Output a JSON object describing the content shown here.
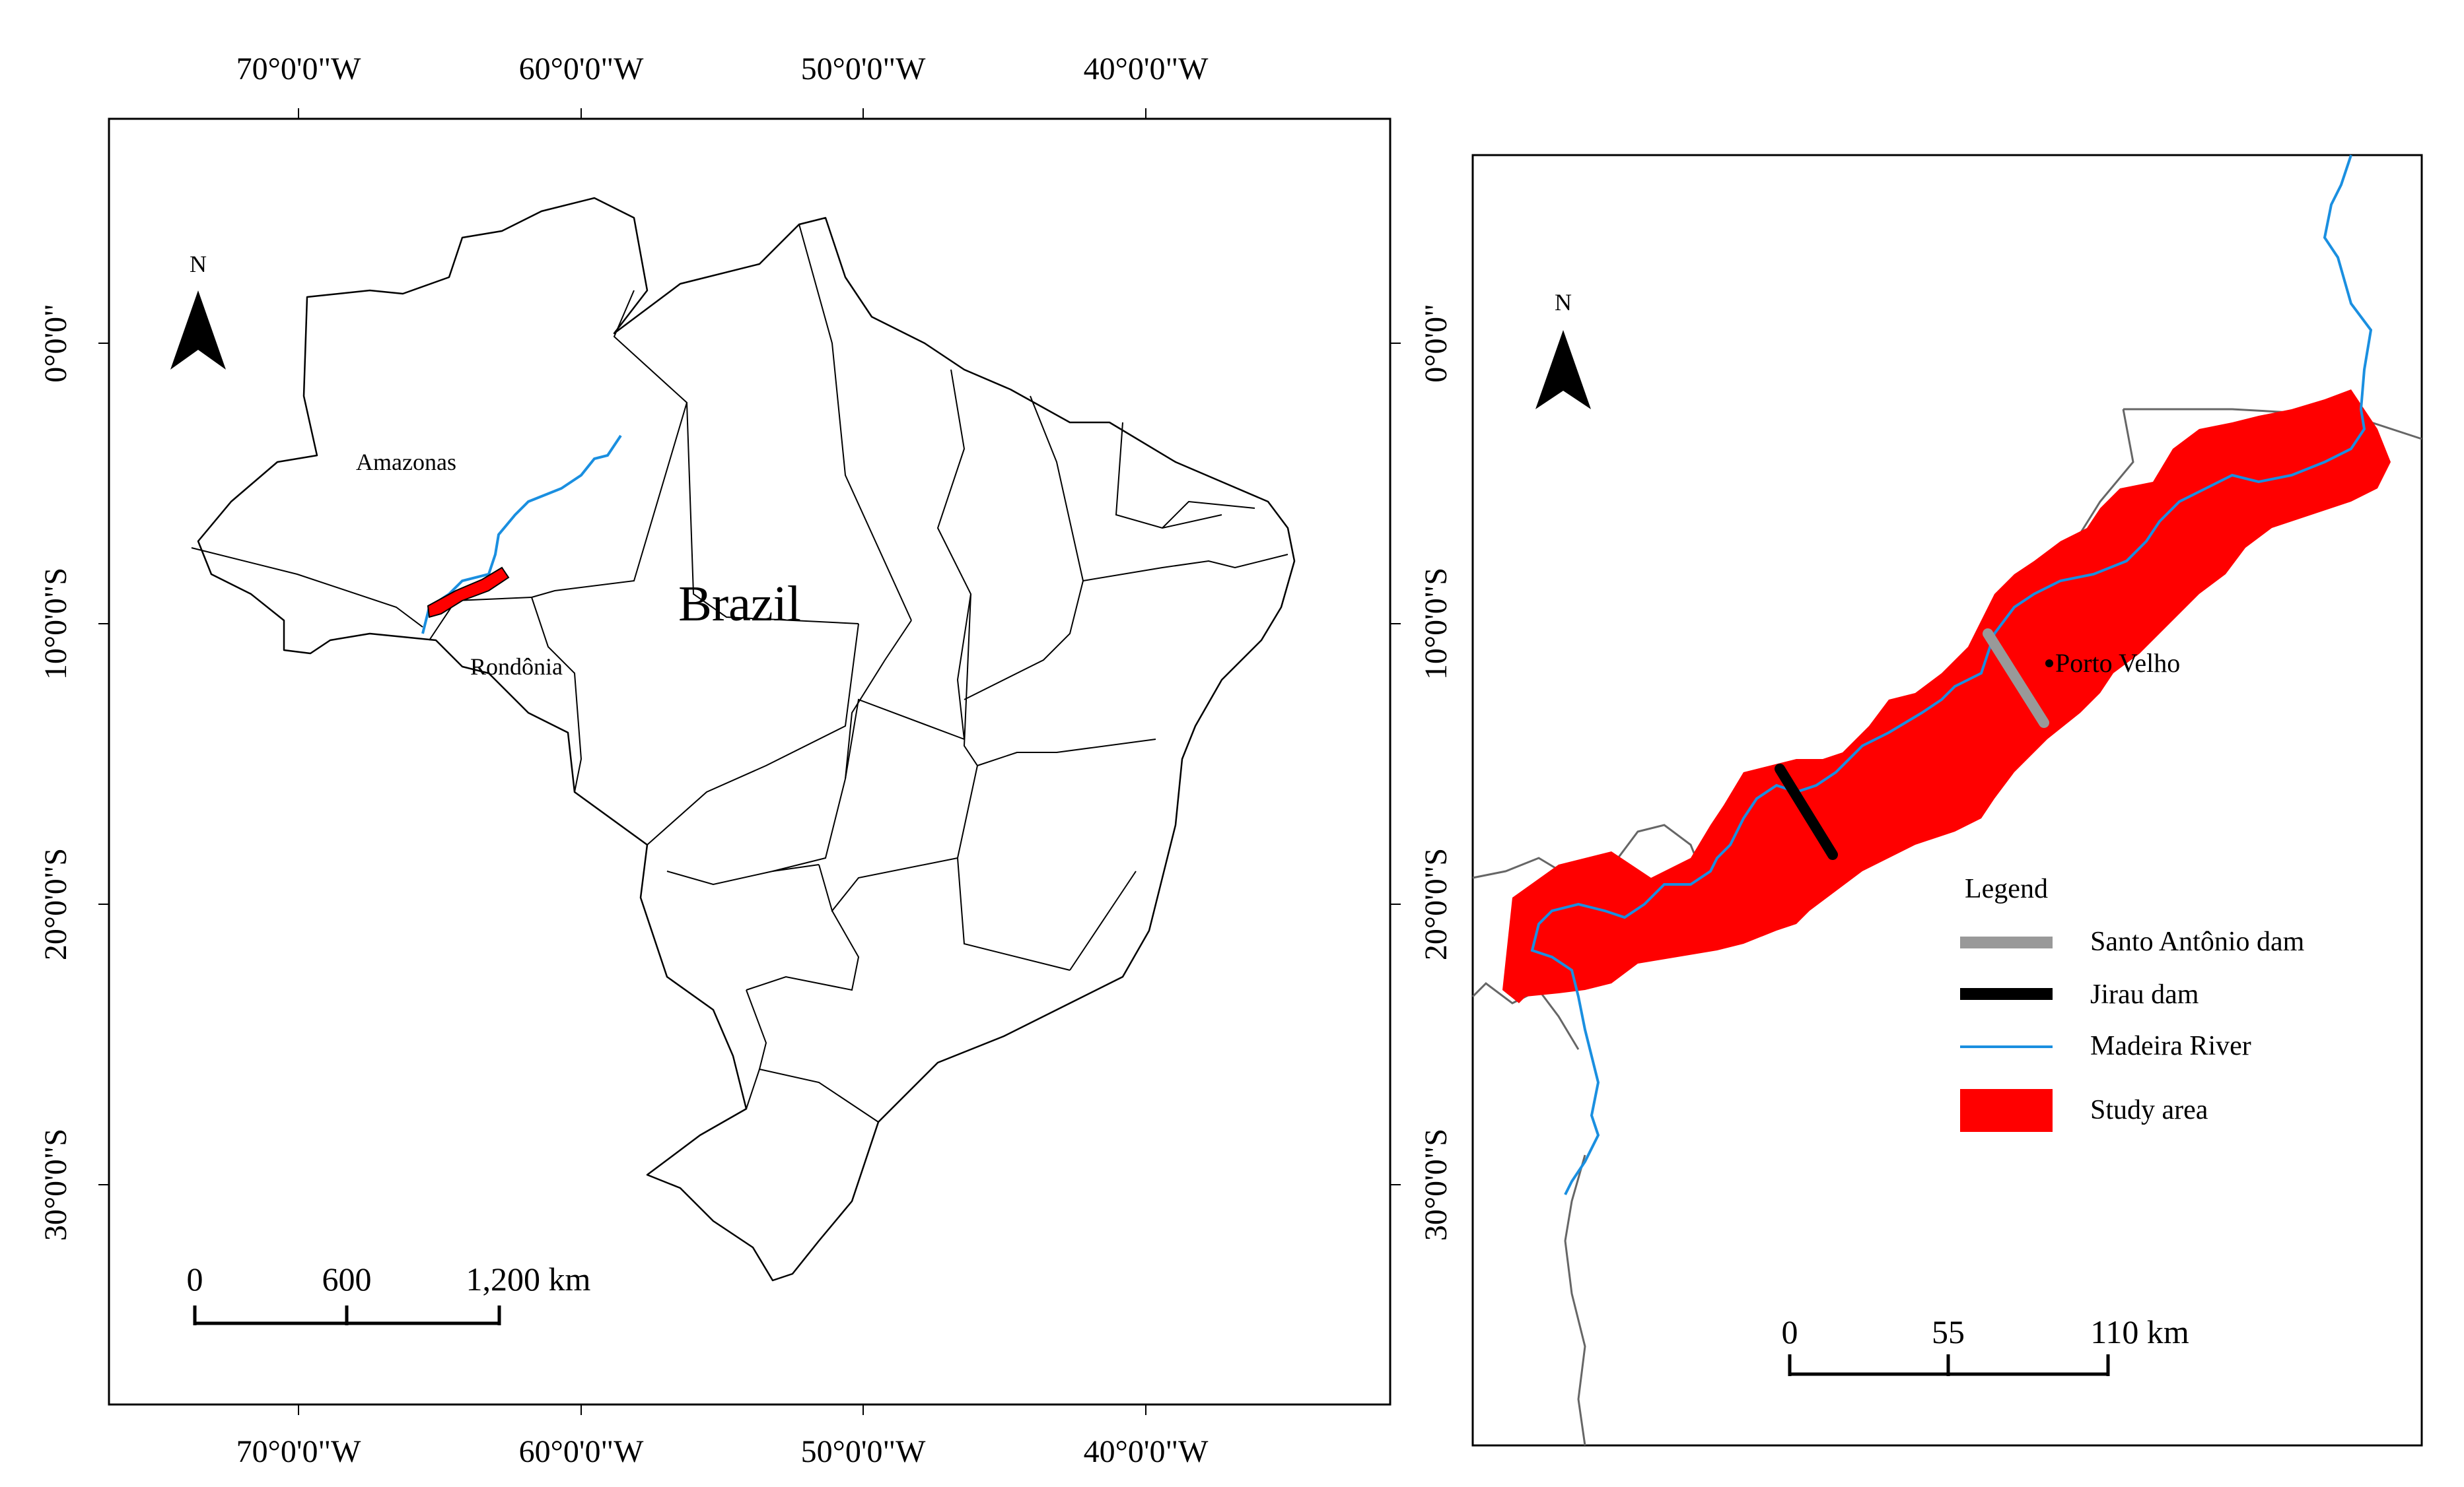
{
  "left_map": {
    "top_ticks": [
      "70°0'0\"W",
      "60°0'0\"W",
      "50°0'0\"W",
      "40°0'0\"W"
    ],
    "bottom_ticks": [
      "70°0'0\"W",
      "60°0'0\"W",
      "50°0'0\"W",
      "40°0'0\"W"
    ],
    "left_ticks": [
      "0°0'0\"",
      "10°0'0\"S",
      "20°0'0\"S",
      "30°0'0\"S"
    ],
    "right_ticks": [
      "0°0'0\"",
      "10°0'0\"S",
      "20°0'0\"S",
      "30°0'0\"S"
    ],
    "north": "N",
    "country_label": "Brazil",
    "state_labels": {
      "amazonas": "Amazonas",
      "rondonia": "Rondônia"
    },
    "scale": {
      "t0": "0",
      "t1": "600",
      "t2": "1,200 km"
    }
  },
  "right_map": {
    "north": "N",
    "city_label": "Porto Velho",
    "legend": {
      "title": "Legend",
      "items": [
        {
          "label": "Santo Antônio dam",
          "color": "#999999",
          "kind": "thick-line"
        },
        {
          "label": "Jirau dam",
          "color": "#000000",
          "kind": "thick-line"
        },
        {
          "label": "Madeira River",
          "color": "#1a8fe0",
          "kind": "line"
        },
        {
          "label": "Study area",
          "color": "#ff0000",
          "kind": "box"
        }
      ]
    },
    "scale": {
      "t0": "0",
      "t1": "55",
      "t2": "110 km"
    }
  },
  "colors": {
    "study_area": "#ff0000",
    "river": "#1a8fe0",
    "santo_antonio_dam": "#999999",
    "jirau_dam": "#000000"
  }
}
